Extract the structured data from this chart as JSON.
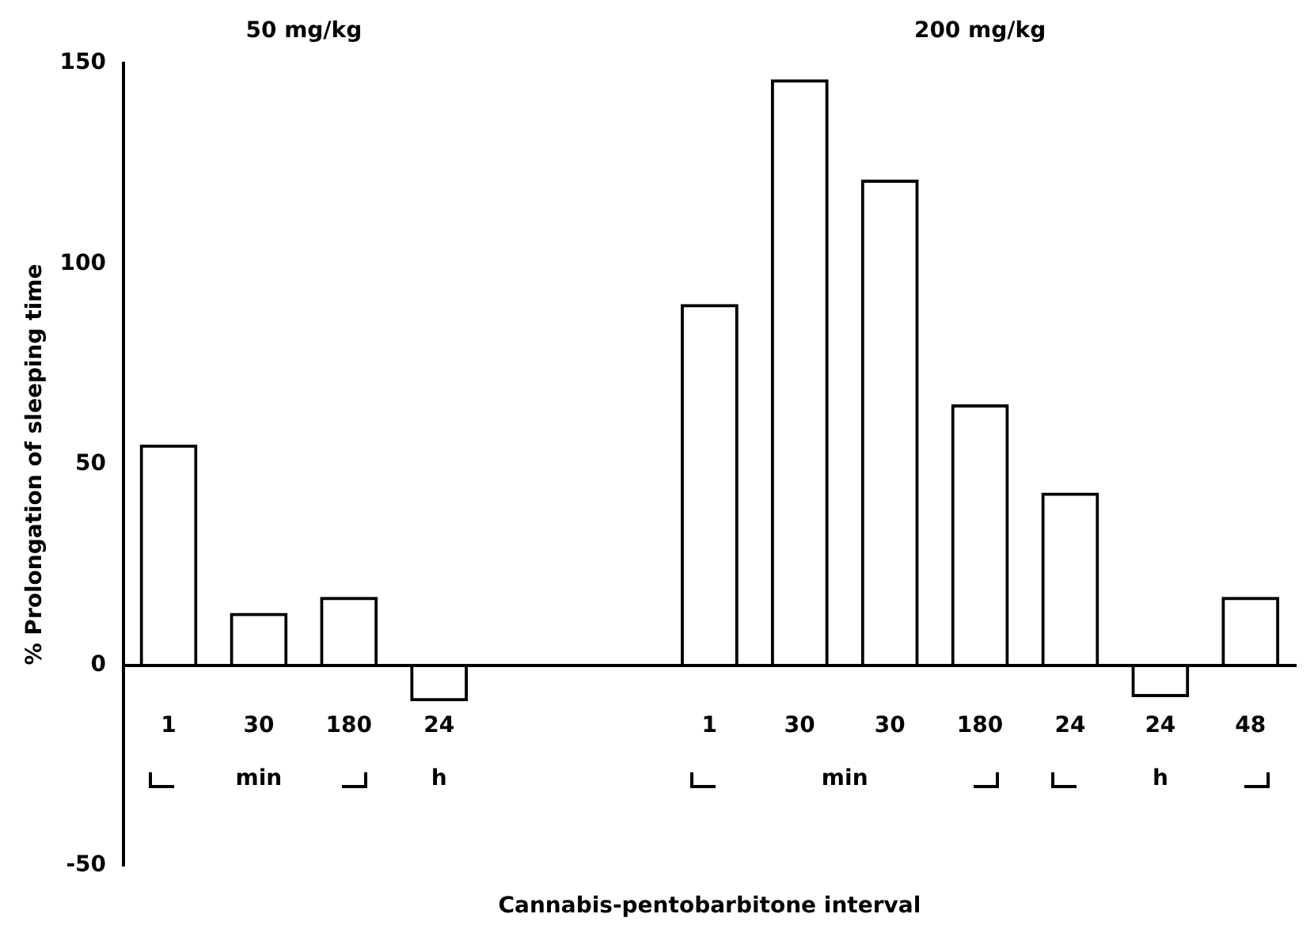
{
  "chart_data": {
    "type": "bar",
    "ylabel": "% Prolongation of sleeping time",
    "xlabel": "Cannabis-pentobarbitone interval",
    "categories": [
      "1",
      "30",
      "180",
      "24",
      null,
      null,
      "1",
      "30",
      "30",
      "180",
      "24",
      "24",
      "48"
    ],
    "values": [
      55,
      13,
      17,
      -9,
      null,
      null,
      90,
      146,
      121,
      65,
      43,
      -8,
      17
    ],
    "color": "#000000",
    "ylim": [
      -50,
      150
    ],
    "yticks": [
      -50,
      0,
      50,
      100,
      150
    ],
    "grid": false,
    "legend": false,
    "annotations": [
      "50 mg/kg",
      "200 mg/kg",
      "min",
      "h",
      "min",
      "h"
    ]
  }
}
